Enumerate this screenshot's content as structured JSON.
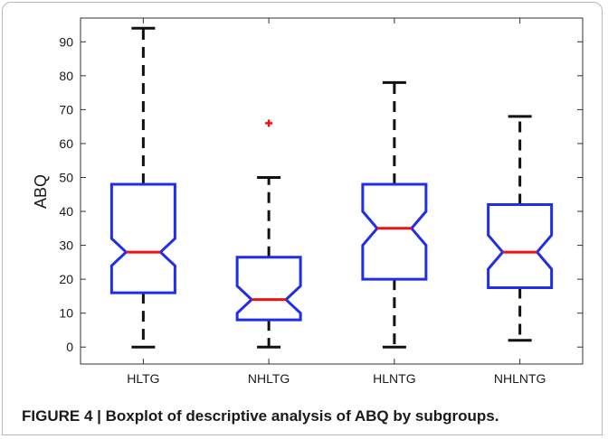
{
  "caption": "FIGURE 4 | Boxplot of descriptive analysis of ABQ by subgroups.",
  "chart_data": {
    "type": "boxplot",
    "title": "",
    "xlabel": "",
    "ylabel": "ABQ",
    "ylim": [
      -5,
      97
    ],
    "yticks": [
      0,
      10,
      20,
      30,
      40,
      50,
      60,
      70,
      80,
      90
    ],
    "categories": [
      "HLTG",
      "NHLTG",
      "HLNTG",
      "NHLNTG"
    ],
    "boxes": [
      {
        "category": "HLTG",
        "whisker_low": 0,
        "q1": 16,
        "median": 28,
        "q3": 48,
        "whisker_high": 94,
        "notch_low": 24,
        "notch_high": 32,
        "outliers": []
      },
      {
        "category": "NHLTG",
        "whisker_low": 0,
        "q1": 8,
        "median": 14,
        "q3": 26.5,
        "whisker_high": 50,
        "notch_low": 10,
        "notch_high": 18,
        "outliers": [
          66
        ]
      },
      {
        "category": "HLNTG",
        "whisker_low": 0,
        "q1": 20,
        "median": 35,
        "q3": 48,
        "whisker_high": 78,
        "notch_low": 30,
        "notch_high": 40,
        "outliers": []
      },
      {
        "category": "NHLNTG",
        "whisker_low": 2,
        "q1": 17.5,
        "median": 28,
        "q3": 42,
        "whisker_high": 68,
        "notch_low": 23,
        "notch_high": 33,
        "outliers": []
      }
    ],
    "box_color": "#1f2eea",
    "median_color": "#ee1111",
    "whisker_color": "#111111",
    "outlier_color": "#ee1111",
    "grid": false,
    "legend": "none"
  }
}
